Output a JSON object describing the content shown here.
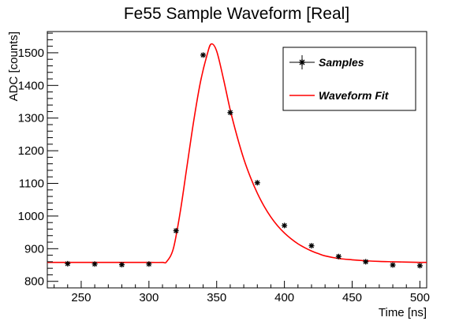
{
  "chart_data": {
    "type": "scatter",
    "title": "Fe55 Sample Waveform [Real]",
    "xlabel": "Time [ns]",
    "ylabel": "ADC [counts]",
    "xlim": [
      225,
      505
    ],
    "ylim": [
      780,
      1565
    ],
    "xticks": [
      250,
      300,
      350,
      400,
      450,
      500
    ],
    "yticks": [
      800,
      900,
      1000,
      1100,
      1200,
      1300,
      1400,
      1500
    ],
    "grid": false,
    "legend_position": "top-right",
    "series": [
      {
        "name": "Samples",
        "kind": "points",
        "color": "#000000",
        "x": [
          240,
          260,
          280,
          300,
          320,
          340,
          360,
          380,
          400,
          420,
          440,
          460,
          480,
          500
        ],
        "y": [
          854,
          853,
          851,
          853,
          955,
          1493,
          1317,
          1102,
          971,
          909,
          876,
          860,
          850,
          848
        ]
      },
      {
        "name": "Waveform Fit",
        "kind": "line",
        "color": "#ff0000",
        "x": [
          225,
          250,
          280,
          300,
          310,
          313,
          318,
          323,
          328,
          333,
          338,
          343,
          346,
          350,
          355,
          360,
          365,
          370,
          375,
          380,
          385,
          390,
          395,
          400,
          405,
          410,
          415,
          420,
          425,
          430,
          440,
          450,
          460,
          470,
          480,
          490,
          500,
          505
        ],
        "y": [
          858,
          858,
          858,
          858,
          858,
          860,
          900,
          1010,
          1150,
          1290,
          1410,
          1495,
          1527,
          1505,
          1420,
          1325,
          1245,
          1175,
          1118,
          1070,
          1030,
          997,
          970,
          948,
          930,
          915,
          903,
          893,
          885,
          878,
          870,
          866,
          863,
          861,
          860,
          859,
          858,
          858
        ]
      }
    ]
  }
}
